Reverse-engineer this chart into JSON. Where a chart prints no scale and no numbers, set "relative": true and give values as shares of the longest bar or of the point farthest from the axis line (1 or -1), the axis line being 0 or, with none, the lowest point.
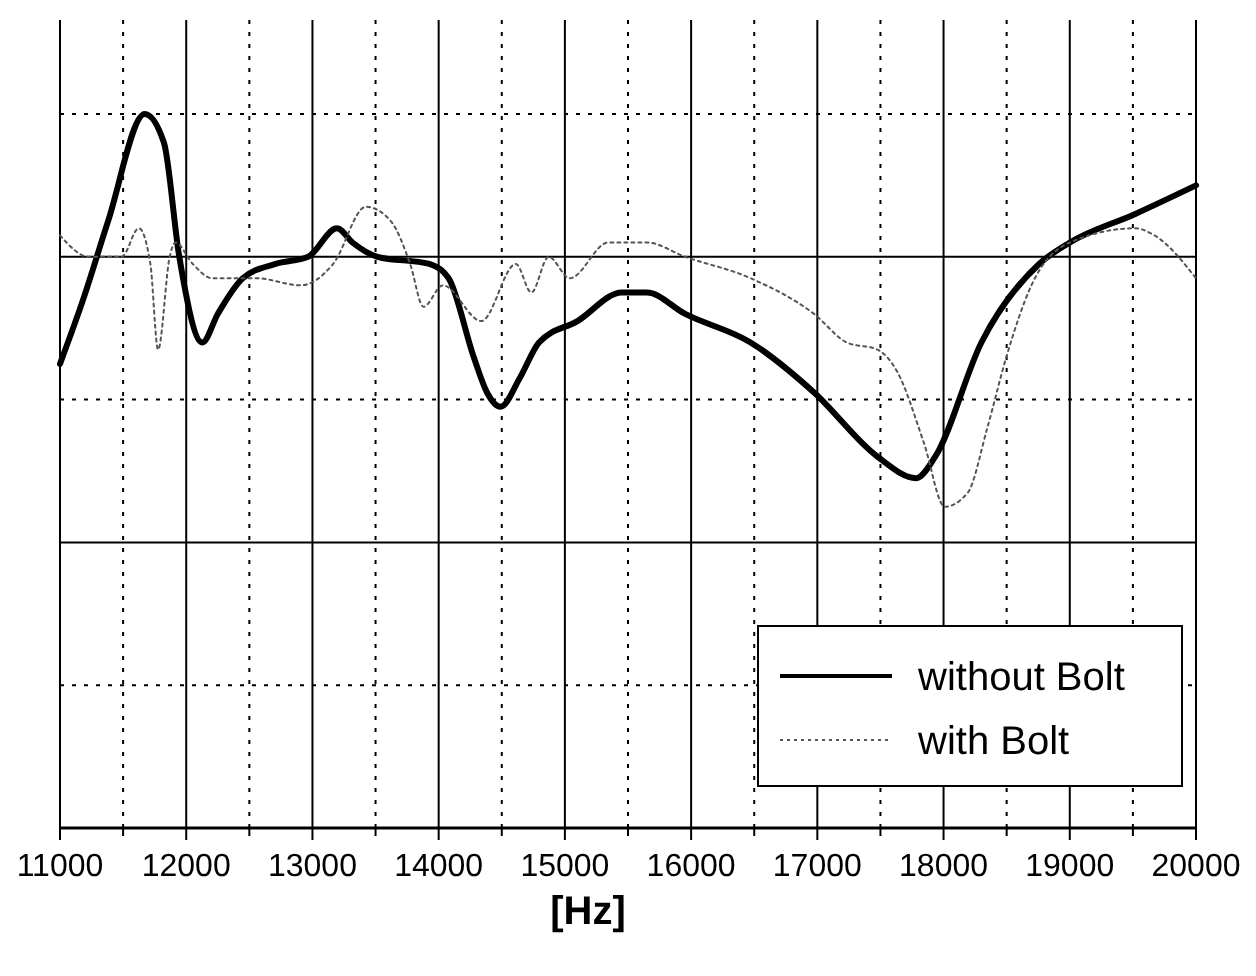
{
  "chart_data": {
    "type": "line",
    "xlabel": "[Hz]",
    "relative": true,
    "grid": true,
    "legend": "bottom right",
    "marker": "none",
    "xlim": [
      11000,
      20000
    ],
    "xticks": [
      11000,
      12000,
      13000,
      14000,
      15000,
      16000,
      17000,
      18000,
      19000,
      20000
    ],
    "series": [
      {
        "name": "without Bolt",
        "color": "#000000",
        "line_style": "solid",
        "x": [
          11000,
          11183,
          11381,
          11671,
          11823,
          11945,
          12128,
          12250,
          12448,
          12707,
          12966,
          13195,
          13317,
          13515,
          13926,
          14079,
          14277,
          14383,
          14490,
          14642,
          14795,
          15100,
          15450,
          15648,
          15953,
          16471,
          16974,
          17477,
          17782,
          17934,
          18300,
          18757,
          19001,
          19519,
          20000
        ],
        "values": [
          0.65,
          0.74,
          0.85,
          1.0,
          0.96,
          0.8,
          0.68,
          0.72,
          0.77,
          0.79,
          0.8,
          0.84,
          0.82,
          0.8,
          0.79,
          0.77,
          0.66,
          0.61,
          0.59,
          0.63,
          0.68,
          0.71,
          0.75,
          0.75,
          0.72,
          0.68,
          0.61,
          0.52,
          0.49,
          0.52,
          0.68,
          0.79,
          0.82,
          0.86,
          0.9
        ]
      },
      {
        "name": "with Bolt",
        "color": "#555555",
        "line_style": "dotted",
        "x": [
          11000,
          11229,
          11488,
          11625,
          11716,
          11777,
          11869,
          11914,
          12052,
          12204,
          12555,
          12905,
          13164,
          13423,
          13621,
          13774,
          13880,
          14033,
          14338,
          14612,
          14734,
          14871,
          15039,
          15343,
          15648,
          15953,
          16471,
          16974,
          17233,
          17477,
          17630,
          17843,
          18010,
          18193,
          18346,
          18498,
          18696,
          19001,
          19519,
          19671,
          20000
        ],
        "values": [
          0.83,
          0.8,
          0.8,
          0.84,
          0.79,
          0.67,
          0.8,
          0.82,
          0.79,
          0.77,
          0.77,
          0.76,
          0.79,
          0.87,
          0.85,
          0.79,
          0.73,
          0.76,
          0.71,
          0.79,
          0.75,
          0.8,
          0.77,
          0.82,
          0.82,
          0.8,
          0.77,
          0.72,
          0.68,
          0.67,
          0.64,
          0.54,
          0.45,
          0.47,
          0.56,
          0.66,
          0.76,
          0.82,
          0.84,
          0.83,
          0.77
        ]
      }
    ]
  }
}
